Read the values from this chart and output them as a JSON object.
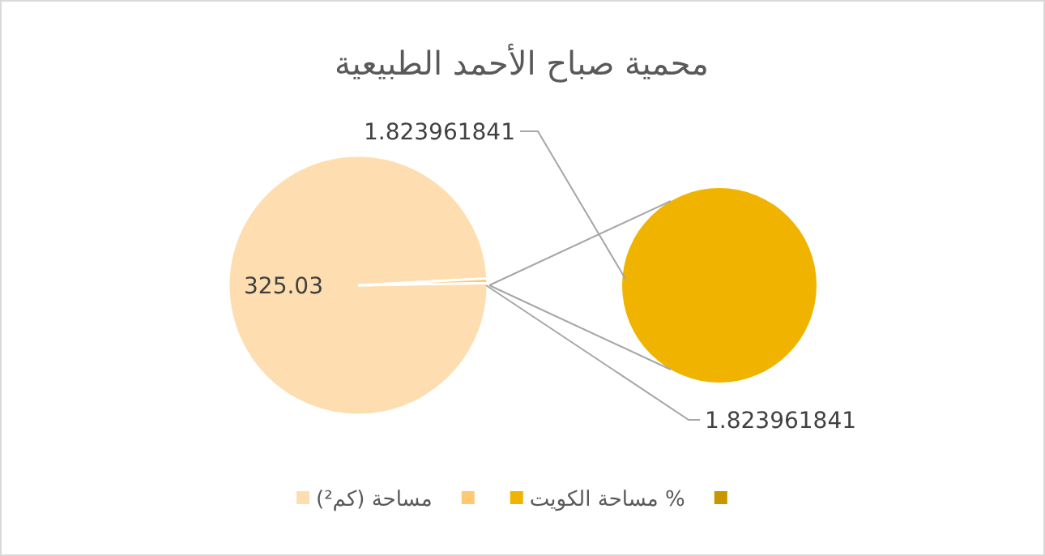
{
  "chart_data": [
    {
      "type": "pie",
      "title": "محمية صباح الأحمد الطبيعية",
      "categories": [
        "مساحة (كم²)",
        null
      ],
      "values": [
        325.03,
        1.823961841
      ],
      "colors": [
        "#fedeb0",
        "#ffc872"
      ],
      "value_labels": [
        "325.03",
        "1.823961841"
      ],
      "legend": "bottom"
    },
    {
      "type": "pie",
      "categories": [
        "مساحة الكويت %",
        null
      ],
      "values": [
        1.823961841,
        0
      ],
      "colors": [
        "#f0b400",
        "#c89600"
      ],
      "value_labels": [
        "1.823961841",
        null
      ],
      "legend": "bottom"
    }
  ]
}
